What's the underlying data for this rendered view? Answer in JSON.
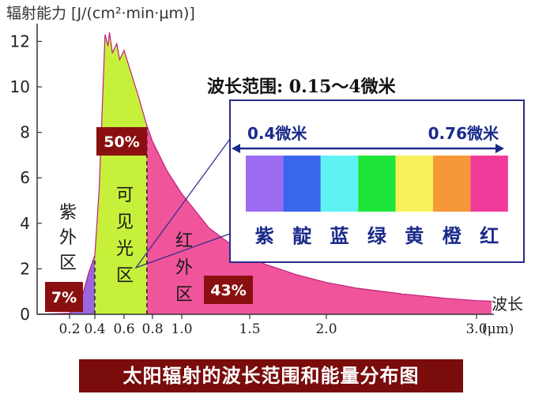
{
  "chart_data": {
    "type": "area",
    "title": "太阳辐射的波长范围和能量分布图",
    "ylabel": "辐射能力 [J/(cm²·min·μm)]",
    "xlabel": "波长",
    "x_unit": "(μm)",
    "ylim": [
      0,
      12.5
    ],
    "xlim": [
      0.12,
      3.1
    ],
    "yticks": [
      "0",
      "2",
      "4",
      "6",
      "8",
      "10",
      "12"
    ],
    "xticks": [
      {
        "v": 0.2,
        "label": "0.2"
      },
      {
        "v": 0.4,
        "label": "0.4"
      },
      {
        "v": 0.6,
        "label": "0.6"
      },
      {
        "v": 0.8,
        "label": "0.8"
      },
      {
        "v": 1.0,
        "label": "1.0"
      },
      {
        "v": 1.5,
        "label": "1.5"
      },
      {
        "v": 2.0,
        "label": "2.0"
      },
      {
        "v": 3.0,
        "label": "3.0"
      }
    ],
    "curve": [
      [
        0.12,
        0
      ],
      [
        0.2,
        0.05
      ],
      [
        0.3,
        0.8
      ],
      [
        0.35,
        1.8
      ],
      [
        0.4,
        2.6
      ],
      [
        0.43,
        5.5
      ],
      [
        0.45,
        9
      ],
      [
        0.47,
        12.3
      ],
      [
        0.49,
        11.8
      ],
      [
        0.5,
        12.4
      ],
      [
        0.52,
        11.5
      ],
      [
        0.55,
        11.9
      ],
      [
        0.57,
        11.2
      ],
      [
        0.6,
        11.6
      ],
      [
        0.63,
        11.0
      ],
      [
        0.66,
        10.4
      ],
      [
        0.7,
        9.6
      ],
      [
        0.76,
        8.3
      ],
      [
        0.8,
        7.6
      ],
      [
        0.9,
        6.3
      ],
      [
        1.0,
        5.3
      ],
      [
        1.2,
        3.8
      ],
      [
        1.4,
        2.9
      ],
      [
        1.6,
        2.2
      ],
      [
        1.8,
        1.75
      ],
      [
        2.0,
        1.4
      ],
      [
        2.2,
        1.15
      ],
      [
        2.5,
        0.9
      ],
      [
        2.8,
        0.7
      ],
      [
        3.0,
        0.6
      ],
      [
        3.1,
        0.58
      ]
    ],
    "regions": [
      {
        "name": "紫外区",
        "from": 0.12,
        "to": 0.4,
        "percent": "7%",
        "color": "#9966dd"
      },
      {
        "name": "可见光区",
        "from": 0.4,
        "to": 0.76,
        "percent": "50%",
        "color": "#c6f03a"
      },
      {
        "name": "红外区",
        "from": 0.76,
        "to": 3.1,
        "percent": "43%",
        "color": "#f0559c"
      }
    ],
    "annotation": "波长范围: 0.15～4微米"
  },
  "inset": {
    "left_label": "0.4微米",
    "right_label": "0.76微米",
    "bands": [
      {
        "name": "紫",
        "color": "#9b6cf0"
      },
      {
        "name": "靛",
        "color": "#3a66ee"
      },
      {
        "name": "蓝",
        "color": "#5ff2f2"
      },
      {
        "name": "绿",
        "color": "#1ee53a"
      },
      {
        "name": "黄",
        "color": "#f8f25a"
      },
      {
        "name": "橙",
        "color": "#f6983a"
      },
      {
        "name": "红",
        "color": "#f03a9a"
      }
    ]
  },
  "colors": {
    "curve_stroke": "#c0207a",
    "label_box": "#8a1010",
    "inset_border": "#2a2a8a",
    "inset_text": "#1a2a8a"
  }
}
